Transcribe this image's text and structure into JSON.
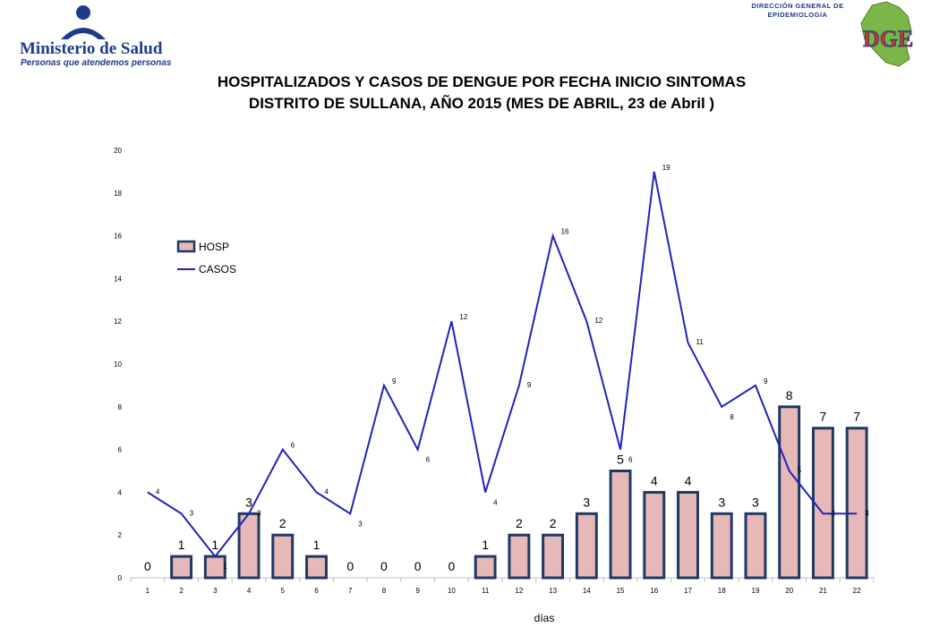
{
  "header": {
    "ministry_name": "Ministerio de Salud",
    "ministry_slogan": "Personas que atendemos personas",
    "dge_line1": "DIRECCIÓN GENERAL DE",
    "dge_line2": "EPIDEMIOLOGIA",
    "dge_logo_letters": "DGE"
  },
  "colors": {
    "bar_fill": "#e6b9b8",
    "bar_stroke": "#1f3864",
    "line": "#2222bb",
    "brand_blue": "#1f3a8a",
    "map_green": "#7ab648"
  },
  "chart_data": {
    "type": "bar",
    "title": "HOSPITALIZADOS Y CASOS DE DENGUE POR FECHA INICIO SINTOMAS",
    "subtitle": "DISTRITO DE SULLANA, AÑO 2015 (MES DE ABRIL, 23 de Abril )",
    "xlabel": "días",
    "ylabel": "",
    "ylim": [
      0,
      20
    ],
    "yticks": [
      0,
      2,
      4,
      6,
      8,
      10,
      12,
      14,
      16,
      18,
      20
    ],
    "categories": [
      "1",
      "2",
      "3",
      "4",
      "5",
      "6",
      "7",
      "8",
      "9",
      "10",
      "11",
      "12",
      "13",
      "14",
      "15",
      "16",
      "17",
      "18",
      "19",
      "20",
      "21",
      "22"
    ],
    "series": [
      {
        "name": "HOSP",
        "type": "bar",
        "values": [
          0,
          1,
          1,
          3,
          2,
          1,
          0,
          0,
          0,
          0,
          1,
          2,
          2,
          3,
          5,
          4,
          4,
          3,
          3,
          8,
          7,
          7
        ]
      },
      {
        "name": "CASOS",
        "type": "line",
        "values": [
          4,
          3,
          1,
          3,
          6,
          4,
          3,
          9,
          6,
          12,
          4,
          9,
          16,
          12,
          6,
          19,
          11,
          8,
          9,
          5,
          3,
          3
        ]
      }
    ],
    "legend": "top-left",
    "grid": false
  }
}
